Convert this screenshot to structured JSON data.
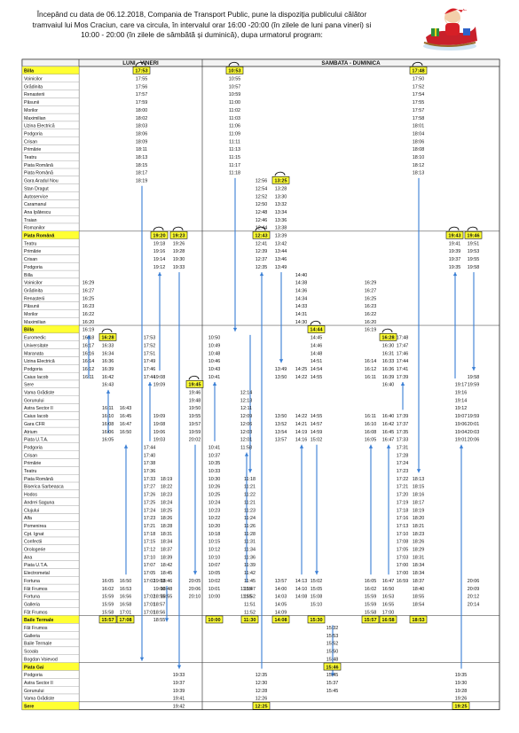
{
  "header": {
    "lines": [
      "Începând cu data de 06.12.2018,  Compania de Transport Public, pune la dispoziția publicului călător",
      "tramvaiul lui Mos Craciun, care va circula, în intervalul orar 16:00 -20:00 (în zilele de luni pana vineri) si",
      "10:00 - 20:00 (în zilele de sâmbătă și duminică), dupa urmatorul program:"
    ],
    "illustration": "santa-claus-sleigh-illustration"
  },
  "colors": {
    "highlight": "#ffff33",
    "arrow": "#3a7fd5",
    "border": "#222222"
  },
  "sections": {
    "weekday": "LUNI - VINERI",
    "weekend": "SAMBATA - DUMINICA"
  },
  "stops": [
    "Billa",
    "Voinicilor",
    "Grădinita",
    "Renasterii",
    "Păsunii",
    "Morilor",
    "Maximilian",
    "Uzina Electrică",
    "Podgoria",
    "Crisan",
    "Primărie",
    "Teatru",
    "Piata Română",
    "Piata Română",
    "Gara Aradul Nou",
    "Stan Dragut",
    "Autoservice",
    "Caramanul",
    "Ana Ipătescu",
    "Traian",
    "Romanilor",
    "Piata Română",
    "Teatru",
    "Primărie",
    "Crisan",
    "Podgoria",
    "Billa",
    "Voinicilor",
    "Grădinita",
    "Renasterii",
    "Păsunii",
    "Morilor",
    "Maximilian",
    "Billa",
    "Euromedic",
    "Universitate",
    "Maranata",
    "Uzina Electrică",
    "Podgoria",
    "Caius Iacob",
    "Sere",
    "Vama Grădiste",
    "Gorunului",
    "Astra Sector II",
    "Caius Iacob",
    "Gara CFR",
    "Atrium",
    "Piata U.T.A.",
    "Podgoria",
    "Crisan",
    "Primărie",
    "Teatru",
    "Piata Română",
    "Biserica Sarbeasca",
    "Hodos",
    "Andrei Saguna",
    "Clujului",
    "Alfa",
    "Pomenirea",
    "Cpt. Ignat",
    "Confectii",
    "Orologerie",
    "Ana",
    "Piata U.T.A.",
    "Electrometal",
    "Fortuna",
    "Făt Frumos",
    "Fortuna",
    "Galleria",
    "Făt Frumos",
    "Baile Termale",
    "Făt Frumos",
    "Galleria",
    "Baile Termale",
    "Scoala",
    "Bogdan Voievod",
    "Piata Gai",
    "Podgoria",
    "Astra Sector II",
    "Gorunului",
    "Vama Grădiste",
    "Sere"
  ],
  "highlighted_stop_rows": [
    0,
    21,
    33,
    70,
    76,
    81
  ],
  "columns": [
    {
      "times": {
        "0": "17:53",
        "1": "17:55",
        "2": "17:56",
        "3": "17:57",
        "4": "17:59",
        "5": "18:00",
        "6": "18:02",
        "7": "18:03",
        "8": "18:06",
        "9": "18:09",
        "10": "18:11",
        "11": "18:13",
        "12": "18:15",
        "13": "18:17",
        "14": "18:19"
      },
      "terminals": [
        0
      ],
      "arrow": [
        15,
        75,
        "down"
      ]
    },
    {
      "times": {
        "27": "16:29",
        "28": "16:27",
        "29": "16:25",
        "30": "16:23",
        "31": "16:22",
        "32": "16:20",
        "33": "16:19",
        "34": "16:18",
        "35": "16:17",
        "36": "16:16",
        "37": "16:14",
        "38": "16:12",
        "39": "16:11"
      },
      "terminals": [],
      "arrow": [
        34,
        39,
        "up"
      ]
    },
    {
      "times": {
        "34": "16:28",
        "35": "16:33",
        "36": "16:34",
        "37": "16:36",
        "38": "16:39",
        "39": "16:42",
        "40": "16:43",
        "43": "16:11",
        "44": "16:10",
        "45": "16:08",
        "46": "16:06",
        "47": "16:05",
        "65": "16:05",
        "66": "16:02",
        "67": "15:59",
        "68": "15:59",
        "69": "15:58",
        "70": "15:57"
      },
      "terminals": [
        34,
        70
      ],
      "arrow": [
        41,
        46,
        "up"
      ]
    },
    {
      "times": {
        "43": "16:43",
        "44": "16:45",
        "45": "16:47",
        "46": "16:50",
        "65": "16:50",
        "66": "16:53",
        "67": "16:56",
        "68": "16:58",
        "69": "17:01",
        "70": "17:08"
      },
      "terminals": [
        70
      ],
      "arrow": [
        48,
        64,
        "up"
      ]
    },
    {
      "times": {
        "34": "17:53",
        "35": "17:52",
        "36": "17:51",
        "37": "17:49",
        "38": "17:46",
        "39": "17:44",
        "48": "17:44",
        "49": "17:40",
        "50": "17:38",
        "51": "17:36",
        "52": "17:33",
        "53": "17:27",
        "54": "17:26",
        "55": "17:25",
        "56": "17:24",
        "57": "17:23",
        "58": "17:21",
        "59": "17:18",
        "60": "17:15",
        "61": "17:12",
        "62": "17:10",
        "63": "17:07",
        "64": "17:05",
        "65": "17:02",
        "67": "17:02",
        "68": "17:01",
        "69": "17:01"
      },
      "terminals": [],
      "arrow": [
        40,
        47,
        "up"
      ]
    },
    {
      "times": {
        "52": "18:19",
        "53": "18:22",
        "54": "18:23",
        "55": "18:24",
        "56": "18:25",
        "57": "18:26",
        "58": "18:28",
        "59": "18:31",
        "60": "18:34",
        "61": "18:37",
        "62": "18:39",
        "63": "18:42",
        "64": "18:45",
        "65": "18:46",
        "66": "18:48",
        "67": "18:55"
      },
      "terminals": [
        70
      ],
      "arrow": [
        66,
        70,
        "down"
      ]
    },
    {
      "times": {
        "21": "19:20",
        "22": "19:18",
        "23": "19:16",
        "24": "19:14",
        "25": "19:12",
        "39": "19:08",
        "40": "19:09",
        "44": "19:09",
        "45": "19:08",
        "46": "19:06",
        "47": "19:03",
        "65": "19:03",
        "66": "19:00",
        "67": "18:55",
        "68": "18:57",
        "69": "18:56",
        "70": "18:55"
      },
      "terminals": [
        21
      ],
      "arrow": [
        26,
        38,
        "up"
      ]
    },
    {
      "times": {
        "21": "19:23",
        "22": "19:26",
        "23": "19:28",
        "24": "19:30",
        "25": "19:33",
        "77": "19:33",
        "78": "19:37",
        "79": "19:39",
        "80": "19:41",
        "81": "19:42"
      },
      "terminals": [
        21
      ],
      "arrow": [
        26,
        76,
        "down"
      ]
    },
    {
      "times": {
        "40": "19:45",
        "41": "19:46",
        "42": "19:48",
        "43": "19:50",
        "44": "19:55",
        "45": "19:57",
        "46": "19:59",
        "47": "20:02",
        "65": "20:05",
        "66": "20:06",
        "67": "20:10"
      },
      "terminals": [
        40
      ],
      "arrow": [
        48,
        64,
        "down"
      ]
    },
    {
      "times": {
        "0": "10:53",
        "1": "10:55",
        "2": "10:57",
        "3": "10:59",
        "4": "11:00",
        "5": "11:02",
        "6": "11:03",
        "7": "11:06",
        "8": "11:09",
        "9": "11:11",
        "10": "11:13",
        "11": "11:15",
        "12": "11:17",
        "13": "11:18"
      },
      "terminals": [
        0
      ],
      "arrow": [
        14,
        33,
        "down"
      ]
    },
    {
      "times": {
        "34": "10:50",
        "35": "10:49",
        "36": "10:48",
        "37": "10:46",
        "38": "10:43",
        "39": "10:41",
        "48": "10:41",
        "49": "10:37",
        "50": "10:35",
        "51": "10:33",
        "52": "10:30",
        "53": "10:26",
        "54": "10:25",
        "55": "10:24",
        "56": "10:23",
        "57": "10:22",
        "58": "10:20",
        "59": "10:18",
        "60": "10:15",
        "61": "10:12",
        "62": "10:10",
        "63": "10:07",
        "64": "10:05",
        "65": "10:02",
        "66": "10:01",
        "67": "10:00",
        "70": "10:00"
      },
      "terminals": [
        70
      ],
      "arrow": [
        40,
        47,
        "up"
      ]
    },
    {
      "times": {
        "52": "11:18",
        "53": "11:21",
        "54": "11:22",
        "55": "11:21",
        "56": "11:23",
        "57": "11:24",
        "58": "11:26",
        "59": "11:28",
        "60": "11:31",
        "61": "11:34",
        "62": "11:36",
        "63": "11:39",
        "64": "11:42",
        "65": "11:45",
        "66": "11:47",
        "67": "11:52",
        "68": "11:51",
        "69": "11:52",
        "70": "11:30"
      },
      "terminals": [
        70
      ],
      "arrow": [
        34,
        51,
        "down"
      ]
    },
    {
      "times": {
        "41": "12:14",
        "42": "12:13",
        "43": "12:11",
        "44": "12:09",
        "45": "12:06",
        "46": "12:03",
        "47": "12:01",
        "48": "11:58",
        "66": "11:55",
        "67": "11:55"
      },
      "terminals": [],
      "arrow": [
        49,
        65,
        "up"
      ]
    },
    {
      "times": {
        "14": "12:56",
        "15": "12:54",
        "16": "12:52",
        "17": "12:50",
        "18": "12:48",
        "19": "12:46",
        "20": "12:44",
        "21": "12:43",
        "22": "12:41",
        "23": "12:39",
        "24": "12:37",
        "25": "12:35",
        "77": "12:35",
        "78": "12:30",
        "79": "12:28",
        "80": "12:26",
        "81": "12:25"
      },
      "terminals": [
        21,
        81
      ],
      "arrow": [
        26,
        76,
        "up"
      ]
    },
    {
      "times": {
        "14": "13:25",
        "15": "13:28",
        "16": "13:30",
        "17": "13:32",
        "18": "13:34",
        "19": "13:36",
        "20": "13:38",
        "21": "13:39",
        "22": "13:42",
        "23": "13:44",
        "24": "13:46",
        "25": "13:49",
        "38": "13:49",
        "39": "13:50",
        "44": "13:50",
        "45": "13:52",
        "46": "13:54",
        "47": "13:57",
        "65": "13:57",
        "66": "14:00",
        "67": "14:03",
        "68": "14:05",
        "69": "14:09",
        "70": "14:08"
      },
      "terminals": [
        14,
        70
      ],
      "arrow": [
        26,
        37,
        "down"
      ]
    },
    {
      "times": {
        "26": "14:40",
        "27": "14:38",
        "28": "14:36",
        "29": "14:34",
        "30": "14:33",
        "31": "14:31",
        "32": "14:30",
        "38": "14:25",
        "39": "14:22",
        "44": "14:22",
        "45": "14:21",
        "46": "14:19",
        "47": "14:16",
        "65": "14:13",
        "66": "14:10",
        "67": "14:08"
      },
      "terminals": [],
      "arrow": [
        48,
        64,
        "up"
      ]
    },
    {
      "times": {
        "33": "14:44",
        "34": "14:45",
        "35": "14:46",
        "36": "14:48",
        "37": "14:51",
        "38": "14:54",
        "39": "14:55",
        "44": "14:55",
        "45": "14:57",
        "46": "14:59",
        "47": "15:02",
        "65": "15:02",
        "66": "15:05",
        "67": "15:08",
        "68": "15:10",
        "70": "15:30"
      },
      "terminals": [
        33,
        70
      ],
      "arrow": [
        48,
        64,
        "down"
      ]
    },
    {
      "times": {
        "71": "15:32",
        "72": "15:53",
        "73": "15:52",
        "74": "15:50",
        "75": "15:48",
        "76": "15:46",
        "77": "15:45",
        "78": "15:37",
        "79": "15:45"
      },
      "terminals": [
        70,
        76
      ],
      "arrow": [
        71,
        77,
        "down"
      ]
    },
    {
      "times": {
        "27": "16:29",
        "28": "16:27",
        "29": "16:25",
        "30": "16:23",
        "31": "16:22",
        "32": "16:20",
        "33": "16:19",
        "37": "16:14",
        "38": "16:12",
        "39": "16:11",
        "44": "16:11",
        "45": "16:10",
        "46": "16:08",
        "47": "16:05",
        "65": "16:05",
        "66": "16:02",
        "67": "15:59",
        "68": "15:59",
        "69": "15:58",
        "70": "15:57"
      },
      "terminals": [
        70
      ],
      "arrow": [
        48,
        64,
        "up"
      ]
    },
    {
      "times": {
        "34": "16:28",
        "35": "16:30",
        "36": "16:31",
        "37": "16:33",
        "38": "16:36",
        "39": "16:39",
        "40": "16:40",
        "44": "16:40",
        "45": "16:42",
        "46": "16:45",
        "47": "16:47",
        "65": "16:47",
        "66": "16:50",
        "67": "16:53",
        "68": "16:55",
        "69": "17:00",
        "70": "16:58"
      },
      "terminals": [
        34,
        70
      ],
      "arrow": [
        48,
        64,
        "up"
      ]
    },
    {
      "times": {
        "34": "17:48",
        "35": "17:47",
        "36": "17:46",
        "37": "17:44",
        "38": "17:41",
        "39": "17:39",
        "44": "17:39",
        "45": "17:37",
        "46": "17:35",
        "47": "17:33",
        "48": "17:31",
        "49": "17:28",
        "50": "17:24",
        "51": "17:23",
        "52": "17:22",
        "53": "17:21",
        "54": "17:20",
        "55": "17:19",
        "56": "17:18",
        "57": "17:16",
        "58": "17:13",
        "59": "17:10",
        "60": "17:08",
        "61": "17:05",
        "62": "17:03",
        "63": "17:00",
        "64": "17:00",
        "65": "16:59"
      },
      "terminals": [],
      "arrow": [
        40,
        43,
        "up"
      ]
    },
    {
      "times": {
        "0": "17:48",
        "1": "17:50",
        "2": "17:52",
        "3": "17:54",
        "4": "17:55",
        "5": "17:57",
        "6": "17:58",
        "7": "18:01",
        "8": "18:04",
        "9": "18:06",
        "10": "18:08",
        "11": "18:10",
        "12": "18:12",
        "13": "18:13",
        "52": "18:13",
        "53": "18:15",
        "54": "18:16",
        "55": "18:17",
        "56": "18:19",
        "57": "18:20",
        "58": "18:21",
        "59": "18:23",
        "60": "18:26",
        "61": "18:29",
        "62": "18:31",
        "63": "18:34",
        "64": "18:34",
        "65": "18:37",
        "66": "18:40",
        "67": "18:55",
        "68": "18:54",
        "70": "18:53"
      },
      "terminals": [
        0,
        70
      ],
      "arrow": [
        14,
        51,
        "down"
      ]
    },
    {
      "times": {
        "40": "19:17",
        "41": "19:16",
        "42": "19:14",
        "43": "19:12",
        "44": "19:07",
        "45": "19:06",
        "46": "19:04",
        "47": "19:01",
        "77": "19:35",
        "78": "19:30",
        "79": "19:28",
        "80": "19:26",
        "81": "19:25"
      },
      "terminals": [
        81
      ],
      "arrow": [
        48,
        76,
        "up"
      ]
    },
    {
      "times": {
        "21": "19:43",
        "22": "19:41",
        "23": "19:39",
        "24": "19:37",
        "25": "19:35"
      },
      "terminals": [
        21
      ],
      "arrow": [
        26,
        39,
        "up"
      ]
    },
    {
      "times": {
        "21": "19:46",
        "22": "19:51",
        "23": "19:53",
        "24": "19:55",
        "25": "19:58",
        "39": "19:58",
        "40": "19:59",
        "44": "19:59",
        "45": "20:01",
        "46": "20:03",
        "47": "20:06",
        "65": "20:06",
        "66": "20:09",
        "67": "20:12",
        "68": "20:14"
      },
      "terminals": [
        21
      ],
      "arrow": [
        26,
        38,
        "down"
      ]
    }
  ]
}
